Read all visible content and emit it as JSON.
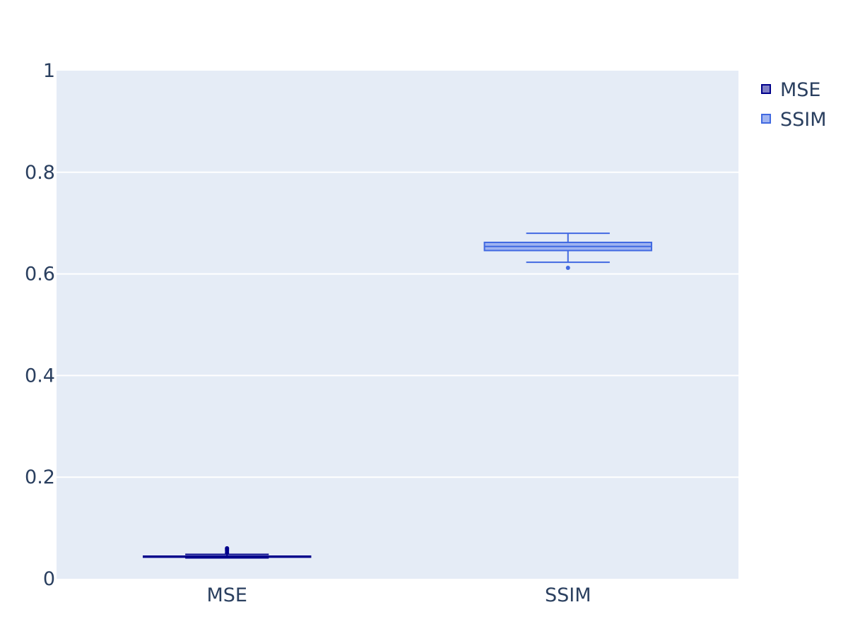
{
  "chart_data": {
    "type": "box",
    "title": "",
    "xlabel": "",
    "ylabel": "",
    "ylim": [
      0,
      1
    ],
    "yticks": [
      0,
      0.2,
      0.4,
      0.6,
      0.8,
      1
    ],
    "ytick_labels": [
      "0",
      "0.2",
      "0.4",
      "0.6",
      "0.8",
      "1"
    ],
    "grid": true,
    "legend_position": "top-right",
    "categories": [
      "MSE",
      "SSIM"
    ],
    "series": [
      {
        "name": "MSE",
        "color": "#00008b",
        "fill": "#7f7fc5",
        "min": 0.041,
        "q1": 0.0425,
        "median": 0.0435,
        "q3": 0.0445,
        "max": 0.048,
        "outliers": [
          0.051,
          0.055,
          0.058,
          0.06
        ]
      },
      {
        "name": "SSIM",
        "color": "#4169e1",
        "fill": "#a0b4f0",
        "min": 0.623,
        "q1": 0.646,
        "median": 0.654,
        "q3": 0.662,
        "max": 0.68,
        "outliers": [
          0.612
        ]
      }
    ]
  },
  "colors": {
    "plot_bg": "#e5ecf6",
    "grid": "#ffffff",
    "text": "#2a3f5f"
  }
}
